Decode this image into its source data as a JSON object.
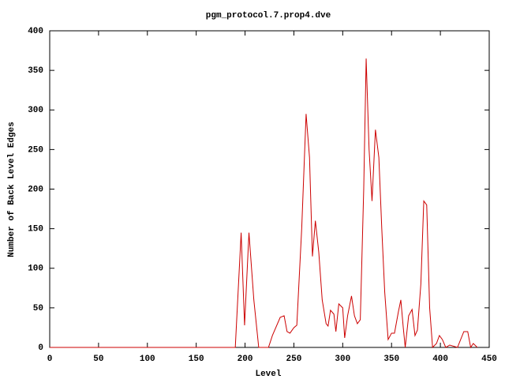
{
  "chart_data": {
    "type": "line",
    "title": "pgm_protocol.7.prop4.dve",
    "x_label": "Level",
    "y_label": "Number of Back Level Edges",
    "xlim": [
      0,
      450
    ],
    "ylim": [
      0,
      400
    ],
    "xticks": [
      0,
      50,
      100,
      150,
      200,
      250,
      300,
      350,
      400,
      450
    ],
    "yticks": [
      0,
      50,
      100,
      150,
      200,
      250,
      300,
      350,
      400
    ],
    "grid": false,
    "x": [
      0,
      190,
      196,
      199.5,
      204,
      209,
      214,
      224,
      228,
      236,
      240,
      243,
      246,
      250,
      253,
      258,
      262.5,
      266,
      269,
      272,
      275.5,
      279,
      283,
      285,
      287.5,
      291,
      293,
      296,
      300,
      302,
      305,
      309,
      312,
      315,
      318,
      321.5,
      324,
      327,
      330,
      333.5,
      337,
      340,
      343,
      346.5,
      350,
      353,
      357,
      359.5,
      362,
      364,
      367.5,
      371,
      374,
      376.5,
      380,
      383,
      386,
      389,
      392,
      396,
      399,
      402,
      405.5,
      409.5,
      417.5,
      424,
      428,
      431,
      433.7,
      437.8
    ],
    "series": [
      {
        "name": "pgm_protocol.7.prop4.dve",
        "color": "#cc0000",
        "values": [
          0,
          0,
          145,
          28,
          145,
          60,
          0,
          0,
          15,
          38,
          40,
          20,
          18,
          25,
          28,
          150,
          295,
          240,
          115,
          160,
          120,
          60,
          30,
          27,
          47,
          42,
          20,
          55,
          50,
          12,
          40,
          65,
          40,
          30,
          35,
          200,
          365,
          250,
          185,
          275,
          240,
          150,
          70,
          10,
          18,
          18,
          45,
          60,
          25,
          0,
          40,
          48,
          15,
          22,
          80,
          185,
          180,
          50,
          0,
          5,
          15,
          10,
          0,
          3,
          0,
          20,
          20,
          0,
          5,
          0
        ]
      }
    ]
  }
}
